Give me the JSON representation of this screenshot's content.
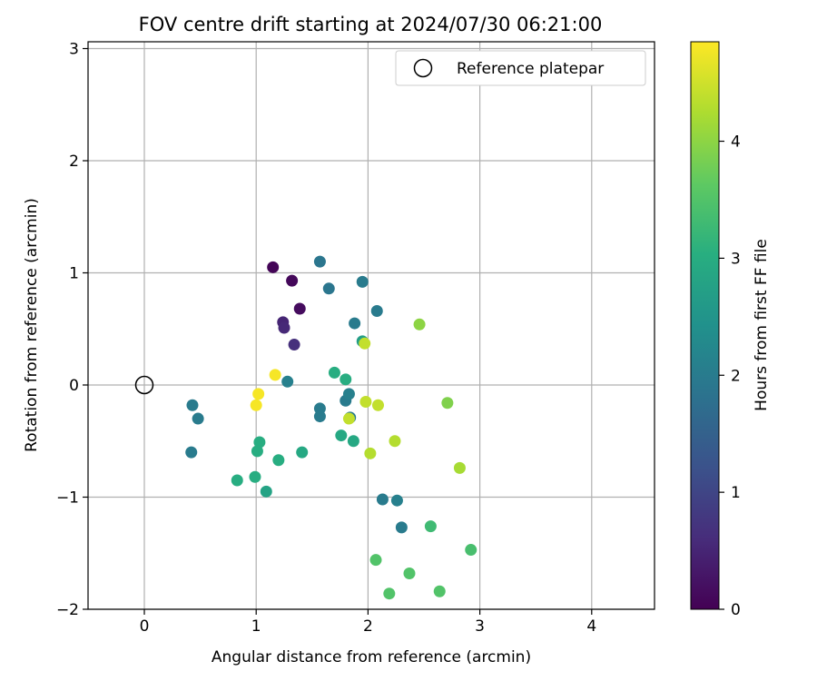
{
  "chart_data": {
    "type": "scatter",
    "title": "FOV centre drift starting at 2024/07/30 06:21:00",
    "xlabel": "Angular distance from reference (arcmin)",
    "ylabel": "Rotation from reference (arcmin)",
    "xlim": [
      -0.5,
      4.55
    ],
    "ylim": [
      -2.0,
      3.05
    ],
    "xticks": [
      "0",
      "1",
      "2",
      "3",
      "4"
    ],
    "yticks": [
      "−2",
      "−1",
      "0",
      "1",
      "2",
      "3"
    ],
    "grid": true,
    "legend": {
      "placement": "top-right",
      "entries": [
        "Reference platepar"
      ]
    },
    "reference_point": {
      "x": 0.0,
      "y": 0.0
    },
    "colorbar": {
      "label": "Hours from first FF file",
      "range": [
        0,
        4.85
      ],
      "ticks": [
        "0",
        "1",
        "2",
        "3",
        "4"
      ],
      "colormap": "viridis"
    },
    "points": [
      {
        "x": 1.15,
        "y": 1.05,
        "h": 0.05
      },
      {
        "x": 1.32,
        "y": 0.93,
        "h": 0.1
      },
      {
        "x": 1.39,
        "y": 0.68,
        "h": 0.15
      },
      {
        "x": 1.24,
        "y": 0.56,
        "h": 0.5
      },
      {
        "x": 1.25,
        "y": 0.51,
        "h": 0.55
      },
      {
        "x": 1.34,
        "y": 0.36,
        "h": 0.65
      },
      {
        "x": 1.57,
        "y": 1.1,
        "h": 1.9
      },
      {
        "x": 1.65,
        "y": 0.86,
        "h": 1.9
      },
      {
        "x": 1.95,
        "y": 0.92,
        "h": 2.0
      },
      {
        "x": 2.08,
        "y": 0.66,
        "h": 2.0
      },
      {
        "x": 1.88,
        "y": 0.55,
        "h": 2.0
      },
      {
        "x": 1.95,
        "y": 0.39,
        "h": 2.7
      },
      {
        "x": 1.97,
        "y": 0.37,
        "h": 4.4
      },
      {
        "x": 2.46,
        "y": 0.54,
        "h": 4.0
      },
      {
        "x": 1.17,
        "y": 0.09,
        "h": 4.8
      },
      {
        "x": 1.28,
        "y": 0.03,
        "h": 2.1
      },
      {
        "x": 1.7,
        "y": 0.11,
        "h": 3.0
      },
      {
        "x": 1.8,
        "y": 0.05,
        "h": 3.0
      },
      {
        "x": 1.02,
        "y": -0.08,
        "h": 4.8
      },
      {
        "x": 1.0,
        "y": -0.18,
        "h": 4.8
      },
      {
        "x": 0.43,
        "y": -0.18,
        "h": 2.0
      },
      {
        "x": 0.48,
        "y": -0.3,
        "h": 2.0
      },
      {
        "x": 1.57,
        "y": -0.21,
        "h": 2.0
      },
      {
        "x": 1.57,
        "y": -0.28,
        "h": 2.0
      },
      {
        "x": 1.8,
        "y": -0.14,
        "h": 2.0
      },
      {
        "x": 1.83,
        "y": -0.08,
        "h": 2.1
      },
      {
        "x": 1.84,
        "y": -0.29,
        "h": 2.0
      },
      {
        "x": 1.83,
        "y": -0.3,
        "h": 4.4
      },
      {
        "x": 1.98,
        "y": -0.15,
        "h": 4.4
      },
      {
        "x": 2.09,
        "y": -0.18,
        "h": 4.4
      },
      {
        "x": 2.71,
        "y": -0.16,
        "h": 3.9
      },
      {
        "x": 1.76,
        "y": -0.45,
        "h": 2.9
      },
      {
        "x": 1.87,
        "y": -0.5,
        "h": 2.9
      },
      {
        "x": 2.02,
        "y": -0.61,
        "h": 4.3
      },
      {
        "x": 2.24,
        "y": -0.5,
        "h": 4.3
      },
      {
        "x": 2.82,
        "y": -0.74,
        "h": 4.2
      },
      {
        "x": 1.03,
        "y": -0.51,
        "h": 3.0
      },
      {
        "x": 1.01,
        "y": -0.59,
        "h": 3.0
      },
      {
        "x": 1.2,
        "y": -0.67,
        "h": 3.0
      },
      {
        "x": 1.41,
        "y": -0.6,
        "h": 2.9
      },
      {
        "x": 0.42,
        "y": -0.6,
        "h": 2.0
      },
      {
        "x": 0.83,
        "y": -0.85,
        "h": 3.0
      },
      {
        "x": 0.99,
        "y": -0.82,
        "h": 3.0
      },
      {
        "x": 1.09,
        "y": -0.95,
        "h": 2.8
      },
      {
        "x": 2.13,
        "y": -1.02,
        "h": 2.0
      },
      {
        "x": 2.26,
        "y": -1.03,
        "h": 2.1
      },
      {
        "x": 2.3,
        "y": -1.27,
        "h": 2.0
      },
      {
        "x": 2.56,
        "y": -1.26,
        "h": 3.3
      },
      {
        "x": 2.92,
        "y": -1.47,
        "h": 3.4
      },
      {
        "x": 2.07,
        "y": -1.56,
        "h": 3.5
      },
      {
        "x": 2.37,
        "y": -1.68,
        "h": 3.5
      },
      {
        "x": 2.19,
        "y": -1.86,
        "h": 3.5
      },
      {
        "x": 2.64,
        "y": -1.84,
        "h": 3.5
      }
    ]
  }
}
